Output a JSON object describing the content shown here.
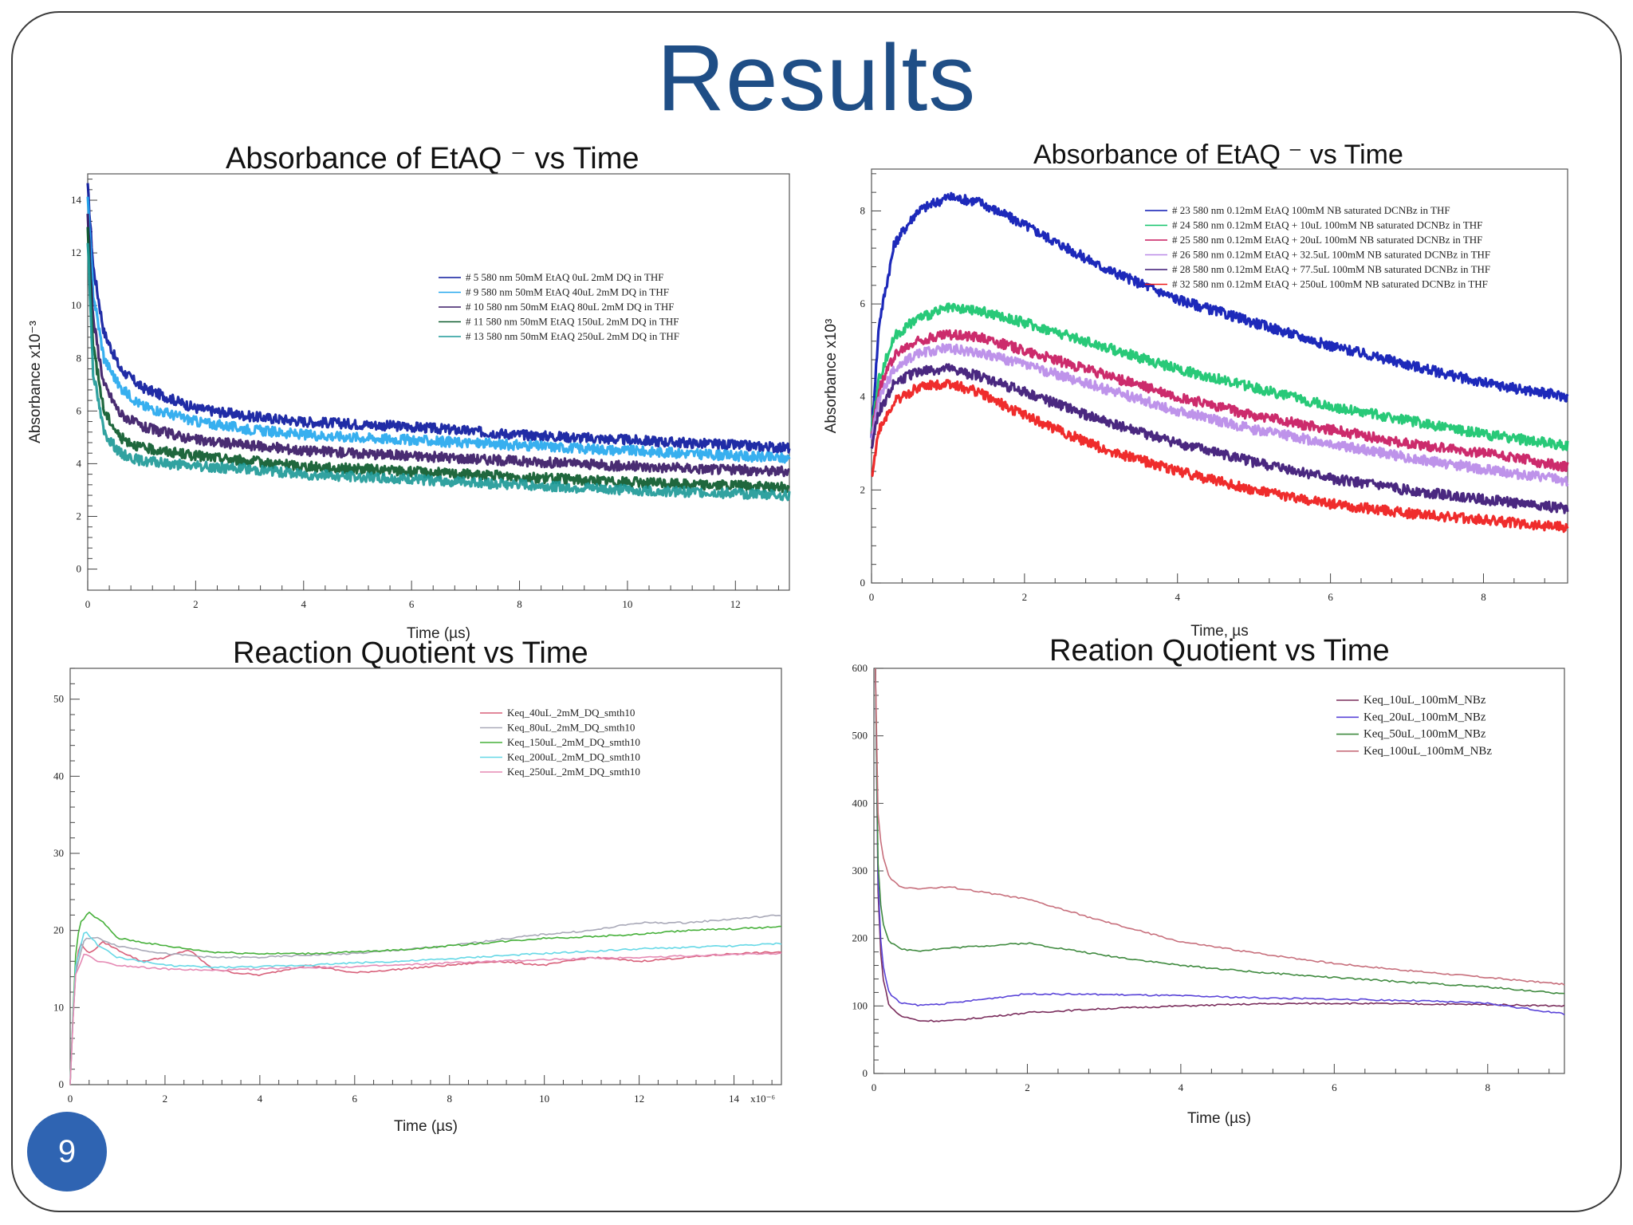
{
  "slide": {
    "title": "Results",
    "page_number": "9"
  },
  "chart_data": [
    {
      "id": "c1",
      "type": "line",
      "title": "Absorbance of EtAQ ⁻ vs Time",
      "xlabel": "Time (µs)",
      "ylabel": "Absorbance x10⁻³",
      "xlim": [
        0,
        13
      ],
      "ylim": [
        -0.8,
        15
      ],
      "xticks": [
        0,
        2,
        4,
        6,
        8,
        10,
        12
      ],
      "yticks": [
        0,
        2,
        4,
        6,
        8,
        10,
        12,
        14
      ],
      "x_unit_note": "",
      "legend_position": "upper-middle",
      "series": [
        {
          "name": "# 5 580 nm 50mM EtAQ 0uL 2mM DQ in THF",
          "color": "#0d1a9e",
          "x": [
            0,
            0.1,
            0.3,
            0.6,
            1.0,
            2,
            3,
            4,
            6,
            8,
            10,
            13
          ],
          "y": [
            14.5,
            11.5,
            9.0,
            7.6,
            6.9,
            6.1,
            5.8,
            5.6,
            5.4,
            5.1,
            4.9,
            4.6
          ]
        },
        {
          "name": "# 9 580 nm 50mM EtAQ 40uL 2mM DQ in THF",
          "color": "#26a8ee",
          "x": [
            0,
            0.1,
            0.3,
            0.6,
            1.0,
            2,
            3,
            4,
            6,
            8,
            10,
            13
          ],
          "y": [
            14.0,
            10.5,
            8.0,
            6.9,
            6.2,
            5.6,
            5.3,
            5.1,
            4.9,
            4.7,
            4.5,
            4.2
          ]
        },
        {
          "name": "# 10 580 nm 50mM EtAQ 80uL 2mM DQ in THF",
          "color": "#3a1a66",
          "x": [
            0,
            0.1,
            0.3,
            0.6,
            1.0,
            2,
            3,
            4,
            6,
            8,
            10,
            13
          ],
          "y": [
            13.5,
            9.5,
            7.0,
            5.9,
            5.4,
            4.9,
            4.7,
            4.5,
            4.3,
            4.1,
            3.9,
            3.7
          ]
        },
        {
          "name": "# 11 580 nm 50mM EtAQ 150uL 2mM DQ in THF",
          "color": "#0c5a2c",
          "x": [
            0,
            0.1,
            0.3,
            0.6,
            1.0,
            2,
            3,
            4,
            6,
            8,
            10,
            13
          ],
          "y": [
            13.0,
            8.5,
            6.0,
            5.0,
            4.6,
            4.3,
            4.1,
            3.9,
            3.7,
            3.5,
            3.3,
            3.1
          ]
        },
        {
          "name": "# 13 580 nm 50mM EtAQ 250uL 2mM DQ in THF",
          "color": "#1f9a98",
          "x": [
            0,
            0.1,
            0.3,
            0.6,
            1.0,
            2,
            3,
            4,
            6,
            8,
            10,
            13
          ],
          "y": [
            12.5,
            7.5,
            5.2,
            4.4,
            4.1,
            3.9,
            3.8,
            3.6,
            3.4,
            3.2,
            3.0,
            2.8
          ]
        }
      ]
    },
    {
      "id": "c2",
      "type": "line",
      "title": "Absorbance of EtAQ ⁻ vs Time",
      "xlabel": "Time, µs",
      "ylabel": "Absorbance x10³",
      "xlim": [
        0,
        9.1
      ],
      "ylim": [
        0,
        8.9
      ],
      "xticks": [
        0,
        2,
        4,
        6,
        8
      ],
      "yticks": [
        0,
        2,
        4,
        6,
        8
      ],
      "x_unit_note": "",
      "legend_position": "top-right",
      "series": [
        {
          "name": "# 23 580 nm 0.12mM EtAQ 100mM NB saturated DCNBz in THF",
          "color": "#0a17b4",
          "x": [
            0,
            0.1,
            0.3,
            0.6,
            1.0,
            1.4,
            2,
            3,
            4,
            5,
            6,
            7,
            8,
            9.1
          ],
          "y": [
            3.2,
            5.6,
            7.3,
            8.0,
            8.3,
            8.2,
            7.7,
            6.8,
            6.1,
            5.6,
            5.1,
            4.7,
            4.3,
            4.0
          ]
        },
        {
          "name": "# 24 580 nm 0.12mM EtAQ  + 10uL 100mM NB saturated DCNBz in THF",
          "color": "#16c46c",
          "x": [
            0,
            0.1,
            0.3,
            0.6,
            1.0,
            1.4,
            2,
            3,
            4,
            5,
            6,
            7,
            8,
            9.1
          ],
          "y": [
            3.3,
            4.4,
            5.3,
            5.7,
            5.9,
            5.85,
            5.6,
            5.1,
            4.6,
            4.2,
            3.8,
            3.5,
            3.2,
            2.95
          ]
        },
        {
          "name": "# 25 580 nm 0.12mM EtAQ  + 20uL 100mM NB saturated DCNBz in THF",
          "color": "#c8195f",
          "x": [
            0,
            0.1,
            0.3,
            0.6,
            1.0,
            1.4,
            2,
            3,
            4,
            5,
            6,
            7,
            8,
            9.1
          ],
          "y": [
            3.2,
            4.2,
            4.9,
            5.2,
            5.35,
            5.3,
            5.0,
            4.5,
            4.0,
            3.6,
            3.3,
            3.0,
            2.8,
            2.5
          ]
        },
        {
          "name": "# 26 580 nm 0.12mM EtAQ  + 32.5uL 100mM NB saturated DCNBz in THF",
          "color": "#b98ae8",
          "x": [
            0,
            0.1,
            0.3,
            0.6,
            1.0,
            1.4,
            2,
            3,
            4,
            5,
            6,
            7,
            8,
            9.1
          ],
          "y": [
            3.1,
            4.0,
            4.6,
            4.95,
            5.05,
            4.95,
            4.7,
            4.2,
            3.7,
            3.3,
            3.0,
            2.7,
            2.45,
            2.2
          ]
        },
        {
          "name": "# 28 580 nm 0.12mM EtAQ  + 77.5uL 100mM NB saturated DCNBz in THF",
          "color": "#3b1675",
          "x": [
            0,
            0.1,
            0.3,
            0.6,
            1.0,
            1.4,
            2,
            3,
            4,
            5,
            6,
            7,
            8,
            9.1
          ],
          "y": [
            2.9,
            3.7,
            4.3,
            4.55,
            4.6,
            4.45,
            4.1,
            3.5,
            3.0,
            2.6,
            2.25,
            2.0,
            1.8,
            1.6
          ]
        },
        {
          "name": "# 32 580 nm 0.12mM EtAQ  + 250uL 100mM NB saturated DCNBz in THF",
          "color": "#ee1a1a",
          "x": [
            0,
            0.1,
            0.3,
            0.6,
            1.0,
            1.4,
            2,
            3,
            4,
            5,
            6,
            7,
            8,
            9.1
          ],
          "y": [
            2.3,
            3.3,
            3.9,
            4.2,
            4.3,
            4.1,
            3.6,
            2.9,
            2.4,
            2.0,
            1.7,
            1.5,
            1.35,
            1.2
          ]
        }
      ]
    },
    {
      "id": "c3",
      "type": "line",
      "title": "Reaction Quotient vs Time",
      "xlabel": "Time (µs)",
      "ylabel": "",
      "xlim": [
        0,
        15
      ],
      "ylim": [
        0,
        54
      ],
      "xticks": [
        0,
        2,
        4,
        6,
        8,
        10,
        12,
        14
      ],
      "yticks": [
        0,
        10,
        20,
        30,
        40,
        50
      ],
      "x_unit_note": "x10⁻⁶",
      "legend_position": "upper-middle",
      "series": [
        {
          "name": "Keq_40uL_2mM_DQ_smth10",
          "color": "#d8607a",
          "x": [
            0,
            0.1,
            0.2,
            0.4,
            0.7,
            1.0,
            1.5,
            2.0,
            2.5,
            3.0,
            3.5,
            4.0,
            5,
            6,
            7,
            8,
            9,
            10,
            11,
            12,
            13,
            14,
            15
          ],
          "y": [
            0,
            14,
            18.5,
            17,
            18.5,
            17.5,
            16,
            16.5,
            17.5,
            15,
            14.5,
            14.2,
            15.5,
            14.5,
            15,
            15.5,
            16,
            15.5,
            16.5,
            16,
            16.5,
            17,
            17.2
          ]
        },
        {
          "name": "Keq_80uL_2mM_DQ_smth10",
          "color": "#a9a9b8",
          "x": [
            0,
            0.1,
            0.3,
            0.6,
            1.0,
            2,
            3,
            4,
            5,
            6,
            7,
            8,
            9,
            10,
            11,
            12,
            13,
            14,
            15
          ],
          "y": [
            0,
            14,
            19,
            19,
            18,
            17,
            16.5,
            16.5,
            16.8,
            17,
            17.5,
            18,
            18.8,
            19.5,
            20,
            21,
            21,
            21.5,
            22
          ]
        },
        {
          "name": "Keq_150uL_2mM_DQ_smth10",
          "color": "#46b03a",
          "x": [
            0,
            0.1,
            0.2,
            0.4,
            0.7,
            1.0,
            2,
            3,
            4,
            5,
            6,
            7,
            8,
            9,
            10,
            11,
            12,
            13,
            14,
            15
          ],
          "y": [
            0,
            16,
            21,
            22.3,
            21,
            19,
            18,
            17.2,
            17,
            17,
            17.2,
            17.5,
            18,
            18.5,
            19,
            19.2,
            19.5,
            20,
            20.2,
            20.5
          ]
        },
        {
          "name": "Keq_200uL_2mM_DQ_smth10",
          "color": "#66d8e6",
          "x": [
            0,
            0.1,
            0.3,
            0.6,
            1.0,
            2,
            3,
            4,
            5,
            6,
            7,
            8,
            9,
            10,
            11,
            12,
            13,
            14,
            15
          ],
          "y": [
            0,
            15,
            20,
            18,
            16.5,
            15.5,
            15.2,
            15.3,
            15.5,
            15.8,
            16,
            16.3,
            16.7,
            17,
            17.3,
            17.6,
            17.8,
            18,
            18.3
          ]
        },
        {
          "name": "Keq_250uL_2mM_DQ_smth10",
          "color": "#e58ab4",
          "x": [
            0,
            0.1,
            0.3,
            0.6,
            1.0,
            2,
            3,
            4,
            5,
            6,
            7,
            8,
            9,
            10,
            11,
            12,
            13,
            14,
            15
          ],
          "y": [
            0,
            14,
            17,
            16,
            15.5,
            15,
            14.8,
            15,
            15.2,
            15.3,
            15.5,
            15.8,
            16,
            16.2,
            16.4,
            16.5,
            16.7,
            16.9,
            17
          ]
        }
      ]
    },
    {
      "id": "c4",
      "type": "line",
      "title": "Reation Quotient vs Time",
      "xlabel": "Time (µs)",
      "ylabel": "",
      "xlim": [
        0,
        9
      ],
      "ylim": [
        0,
        600
      ],
      "xticks": [
        0,
        2,
        4,
        6,
        8
      ],
      "yticks": [
        0,
        100,
        200,
        300,
        400,
        500,
        600
      ],
      "x_unit_note": "",
      "legend_position": "top-right",
      "series": [
        {
          "name": "Keq_10uL_100mM_NBz",
          "color": "#7a2d5c",
          "x": [
            0.02,
            0.05,
            0.1,
            0.2,
            0.35,
            0.6,
            1.0,
            2,
            3,
            4,
            5,
            6,
            7,
            8,
            9
          ],
          "y": [
            600,
            280,
            150,
            100,
            85,
            78,
            78,
            90,
            96,
            100,
            103,
            104,
            103,
            102,
            100
          ]
        },
        {
          "name": "Keq_20uL_100mM_NBz",
          "color": "#5a44d8",
          "x": [
            0.02,
            0.05,
            0.1,
            0.2,
            0.35,
            0.6,
            1.0,
            2,
            3,
            4,
            5,
            6,
            7,
            8,
            9
          ],
          "y": [
            600,
            300,
            170,
            118,
            104,
            101,
            104,
            118,
            117,
            115,
            112,
            110,
            108,
            104,
            88
          ]
        },
        {
          "name": "Keq_50uL_100mM_NBz",
          "color": "#3f8a3f",
          "x": [
            0.02,
            0.05,
            0.1,
            0.2,
            0.35,
            0.6,
            1.0,
            2,
            3,
            4,
            5,
            6,
            7,
            8,
            9
          ],
          "y": [
            600,
            320,
            230,
            195,
            184,
            182,
            186,
            193,
            175,
            160,
            150,
            142,
            135,
            128,
            118
          ]
        },
        {
          "name": "Keq_100uL_100mM_NBz",
          "color": "#c76f7c",
          "x": [
            0.02,
            0.05,
            0.1,
            0.2,
            0.35,
            0.6,
            1.0,
            2,
            3,
            4,
            5,
            6,
            7,
            8,
            9
          ],
          "y": [
            600,
            390,
            330,
            290,
            276,
            274,
            276,
            258,
            225,
            195,
            178,
            163,
            152,
            142,
            132
          ]
        }
      ]
    }
  ]
}
